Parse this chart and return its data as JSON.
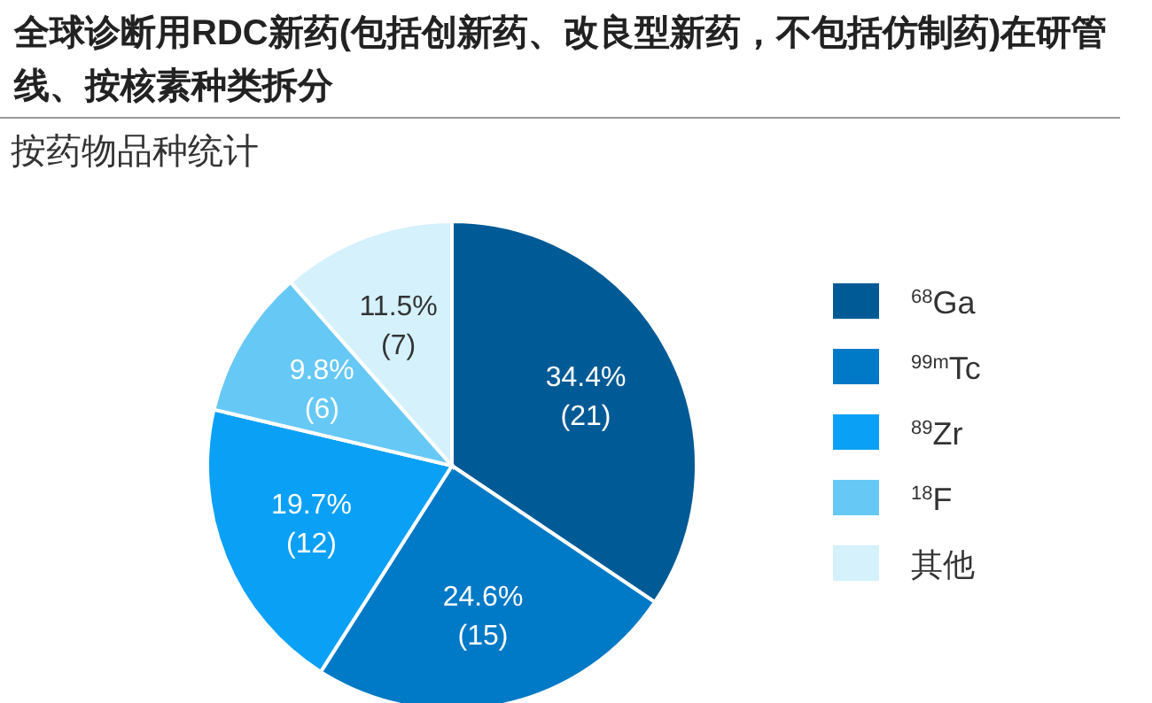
{
  "chart_data": {
    "type": "pie",
    "title": "全球诊断用RDC新药(包括创新药、改良型新药，不包括仿制药)在研管线、按核素种类拆分",
    "subtitle": "按药物品种统计",
    "categories": [
      "$^{68}$Ga",
      "$^{99m}$Tc",
      "$^{89}$Zr",
      "$^{18}$F",
      "其他"
    ],
    "values": [
      21,
      15,
      12,
      6,
      7
    ],
    "value_labels": [
      "34.4%\n(21)",
      "24.6%\n(15)",
      "19.7%\n(12)",
      "9.8%\n(6)",
      "11.5%\n(7)"
    ],
    "colors": [
      "#005a96",
      "#0079c6",
      "#0aa0f5",
      "#66c8f5",
      "#d4f1fc"
    ],
    "legend": "right"
  }
}
